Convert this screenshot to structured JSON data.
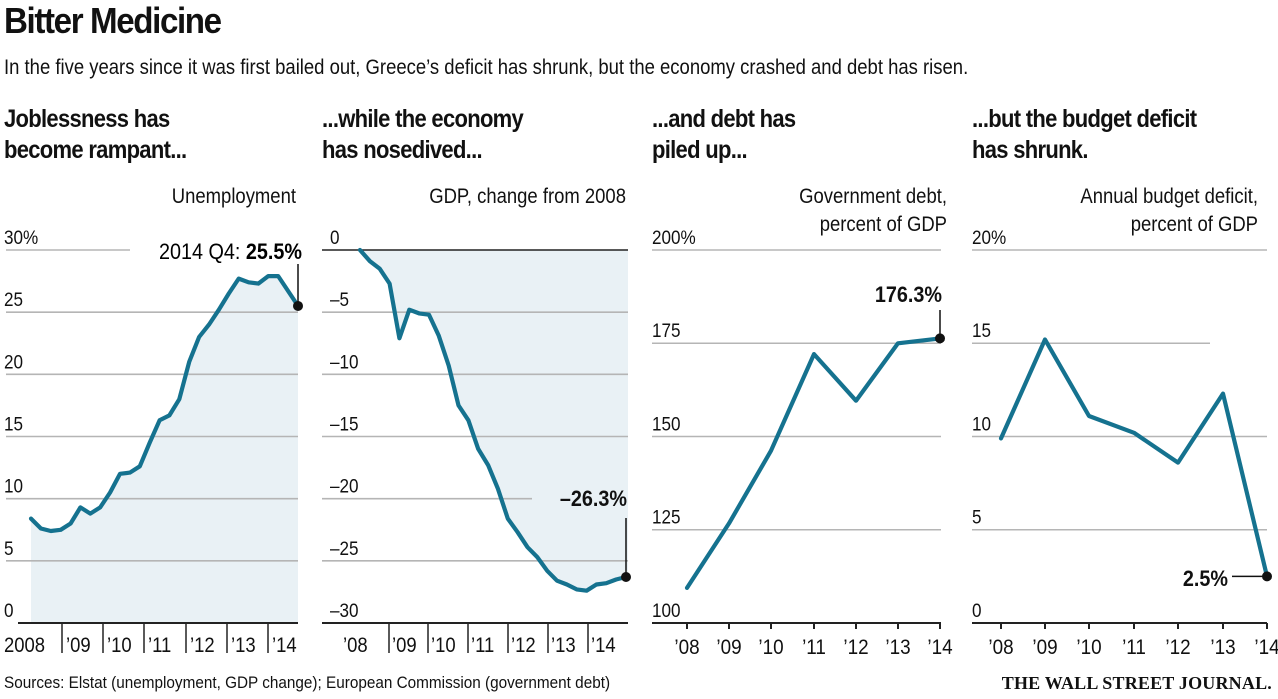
{
  "header": {
    "title": "Bitter Medicine",
    "subtitle": "In the five years since it was first bailed out, Greece’s deficit has shrunk, but the economy crashed and debt has risen."
  },
  "footer": {
    "source": "Sources: Elstat (unemployment, GDP change); European Commission (government debt)",
    "brand": "THE WALL STREET JOURNAL."
  },
  "colors": {
    "line": "#15728f",
    "fill": "#e9f1f5",
    "grid": "#b5b5b5",
    "axis": "#222222"
  },
  "panels": [
    {
      "headline_line1": "Joblessness has",
      "headline_line2": "become rampant..."
    },
    {
      "headline_line1": "...while the economy",
      "headline_line2": "has nosedived..."
    },
    {
      "headline_line1": "...and debt has",
      "headline_line2": "piled up..."
    },
    {
      "headline_line1": "...but the budget deficit",
      "headline_line2": "has shrunk."
    }
  ],
  "chart_data": [
    {
      "type": "area",
      "title": "Unemployment",
      "frequency": "quarterly",
      "x_start": "2008 Q1",
      "x_end": "2014 Q4",
      "xticklabels": [
        "2008",
        "’09",
        "’10",
        "’11",
        "’12",
        "’13",
        "’14"
      ],
      "yticklabels": [
        "30%",
        "25",
        "20",
        "15",
        "10",
        "5",
        "0"
      ],
      "yticks": [
        30,
        25,
        20,
        15,
        10,
        5,
        0
      ],
      "ylim": [
        0,
        30
      ],
      "grid": true,
      "values": [
        8.4,
        7.6,
        7.4,
        7.5,
        8.0,
        9.3,
        8.8,
        9.3,
        10.5,
        12.0,
        12.1,
        12.6,
        14.5,
        16.3,
        16.7,
        18.0,
        21.0,
        23.0,
        24.0,
        25.2,
        26.5,
        27.7,
        27.4,
        27.3,
        27.9,
        27.9,
        26.7,
        25.5
      ],
      "annotation": {
        "label": "2014 Q4: ",
        "value": "25.5%"
      }
    },
    {
      "type": "area",
      "title": "GDP, change from 2008",
      "frequency": "quarterly",
      "x_start": "2008 Q1",
      "x_end": "2014 Q4",
      "xticklabels": [
        "’08",
        "’09",
        "’10",
        "’11",
        "’12",
        "’13",
        "’14"
      ],
      "yticklabels": [
        "0",
        "–5",
        "–10",
        "–15",
        "–20",
        "–25",
        "–30"
      ],
      "yticks": [
        0,
        -5,
        -10,
        -15,
        -20,
        -25,
        -30
      ],
      "ylim": [
        -30,
        0
      ],
      "grid": true,
      "values": [
        0,
        -0.9,
        -1.5,
        -2.7,
        -7.1,
        -4.8,
        -5.1,
        -5.2,
        -6.9,
        -9.3,
        -12.5,
        -13.7,
        -16.0,
        -17.3,
        -19.2,
        -21.6,
        -22.7,
        -23.9,
        -24.7,
        -25.8,
        -26.6,
        -26.9,
        -27.3,
        -27.4,
        -26.9,
        -26.8,
        -26.5,
        -26.3
      ],
      "annotation": {
        "value": "–26.3%"
      }
    },
    {
      "type": "line",
      "title_line1": "Government debt,",
      "title_line2": "percent of GDP",
      "categories": [
        "’08",
        "’09",
        "’10",
        "’11",
        "’12",
        "’13",
        "’14"
      ],
      "yticklabels": [
        "200%",
        "175",
        "150",
        "125",
        "100"
      ],
      "yticks": [
        200,
        175,
        150,
        125,
        100
      ],
      "ylim": [
        100,
        200
      ],
      "grid": true,
      "values": [
        109.4,
        126.7,
        146.2,
        172.1,
        159.6,
        175.0,
        176.3
      ],
      "annotation": {
        "value": "176.3%"
      }
    },
    {
      "type": "line",
      "title_line1": "Annual budget deficit,",
      "title_line2": "percent of GDP",
      "categories": [
        "’08",
        "’09",
        "’10",
        "’11",
        "’12",
        "’13",
        "’14"
      ],
      "yticklabels": [
        "20%",
        "15",
        "10",
        "5",
        "0"
      ],
      "yticks": [
        20,
        15,
        10,
        5,
        0
      ],
      "ylim": [
        0,
        20
      ],
      "grid": true,
      "values": [
        9.9,
        15.2,
        11.1,
        10.2,
        8.6,
        12.3,
        2.5
      ],
      "annotation": {
        "value": "2.5%"
      }
    }
  ]
}
